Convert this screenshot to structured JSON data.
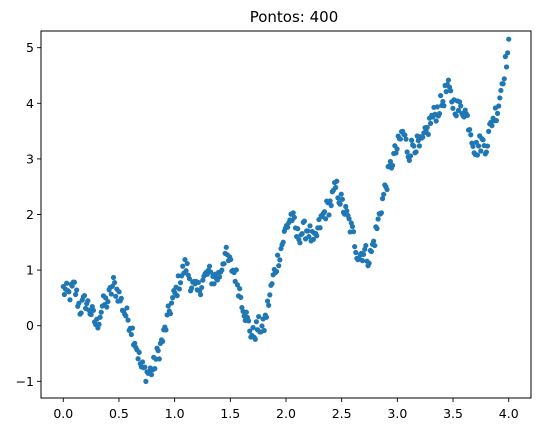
{
  "chart_data": {
    "type": "scatter",
    "title": "Pontos: 400",
    "xlabel": "",
    "ylabel": "",
    "xlim": [
      -0.2,
      4.2
    ],
    "ylim": [
      -1.3,
      5.3
    ],
    "xticks": [
      0.0,
      0.5,
      1.0,
      1.5,
      2.0,
      2.5,
      3.0,
      3.5,
      4.0
    ],
    "xtick_labels": [
      "0.0",
      "0.5",
      "1.0",
      "1.5",
      "2.0",
      "2.5",
      "3.0",
      "3.5",
      "4.0"
    ],
    "yticks": [
      -1,
      0,
      1,
      2,
      3,
      4,
      5
    ],
    "ytick_labels": [
      "−1",
      "0",
      "1",
      "2",
      "3",
      "4",
      "5"
    ],
    "grid": false,
    "point_count": 400,
    "color": "#1f77b4",
    "trend_anchors": {
      "x": [
        0.0,
        0.05,
        0.1,
        0.15,
        0.2,
        0.25,
        0.3,
        0.35,
        0.4,
        0.45,
        0.5,
        0.55,
        0.6,
        0.65,
        0.7,
        0.75,
        0.8,
        0.85,
        0.9,
        0.95,
        1.0,
        1.05,
        1.1,
        1.15,
        1.2,
        1.25,
        1.3,
        1.35,
        1.4,
        1.45,
        1.5,
        1.55,
        1.6,
        1.65,
        1.7,
        1.75,
        1.8,
        1.85,
        1.9,
        1.95,
        2.0,
        2.05,
        2.1,
        2.15,
        2.2,
        2.25,
        2.3,
        2.35,
        2.4,
        2.45,
        2.5,
        2.55,
        2.6,
        2.65,
        2.7,
        2.75,
        2.8,
        2.85,
        2.9,
        2.95,
        3.0,
        3.05,
        3.1,
        3.15,
        3.2,
        3.25,
        3.3,
        3.35,
        3.4,
        3.45,
        3.5,
        3.55,
        3.6,
        3.65,
        3.7,
        3.75,
        3.8,
        3.85,
        3.9,
        3.95,
        4.0
      ],
      "y": [
        0.65,
        0.55,
        0.7,
        0.3,
        0.45,
        0.25,
        0.0,
        0.35,
        0.45,
        0.75,
        0.55,
        0.25,
        0.05,
        -0.3,
        -0.75,
        -0.85,
        -0.8,
        -0.5,
        -0.2,
        0.25,
        0.55,
        0.85,
        1.1,
        0.75,
        0.6,
        0.8,
        0.95,
        0.85,
        0.9,
        1.3,
        1.1,
        0.9,
        0.5,
        0.1,
        -0.2,
        0.0,
        -0.05,
        0.5,
        1.0,
        1.35,
        1.75,
        2.0,
        1.6,
        1.7,
        1.75,
        1.45,
        1.8,
        2.05,
        2.2,
        2.5,
        2.2,
        1.95,
        1.65,
        1.25,
        1.35,
        1.2,
        1.6,
        2.1,
        2.55,
        2.95,
        3.2,
        3.5,
        3.1,
        3.3,
        3.2,
        3.4,
        3.7,
        3.85,
        4.0,
        4.3,
        4.0,
        3.9,
        3.9,
        3.6,
        3.15,
        3.3,
        3.25,
        3.7,
        3.9,
        4.5,
        5.0
      ]
    }
  }
}
